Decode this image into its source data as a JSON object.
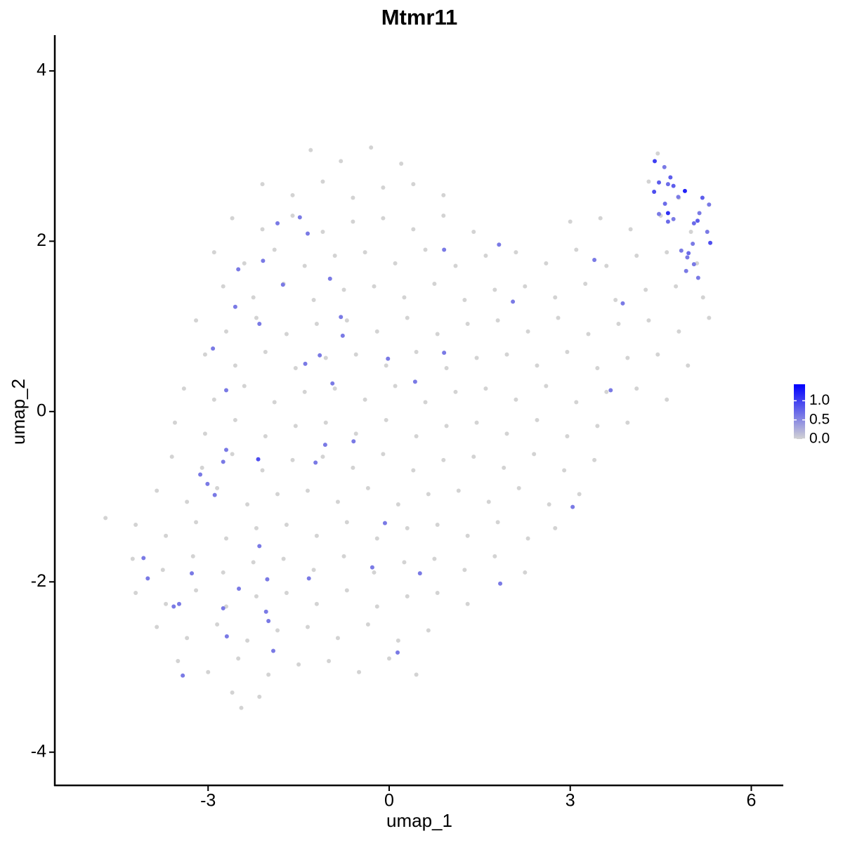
{
  "chart_data": {
    "type": "scatter",
    "title": "Mtmr11",
    "x_label": "umap_1",
    "y_label": "umap_2",
    "xlim": [
      -5.54,
      6.53
    ],
    "ylim": [
      -4.39,
      4.42
    ],
    "xticks": [
      -3,
      0,
      3,
      6
    ],
    "yticks": [
      -4,
      -2,
      0,
      2,
      4
    ],
    "grid": false,
    "color_scale": [
      "#d3d3d3",
      "#0000ff"
    ],
    "color_lim": [
      0,
      1.43
    ],
    "color_ticks": [
      {
        "value": 0,
        "label": "0.0"
      },
      {
        "value": 0.5,
        "label": "0.5"
      },
      {
        "value": 1,
        "label": "1.0"
      }
    ],
    "series": [
      {
        "color": "#d3d3d3",
        "x": [
          -1.3,
          -0.8,
          -0.3,
          0.2,
          4.45,
          -2.1,
          -1.6,
          -1.1,
          -0.6,
          -0.1,
          0.4,
          0.9,
          4.3,
          4.8,
          -2.6,
          -2.1,
          -1.6,
          -1.1,
          -0.6,
          -0.1,
          0.4,
          0.9,
          1.4,
          3.0,
          3.5,
          4.0,
          4.5,
          5.0,
          -2.9,
          -2.4,
          -1.9,
          -1.4,
          -0.9,
          -0.4,
          0.1,
          0.6,
          1.1,
          1.6,
          2.1,
          2.6,
          3.1,
          3.6,
          4.1,
          4.6,
          5.1,
          -2.75,
          -2.25,
          -1.75,
          -1.25,
          -0.75,
          -0.25,
          0.25,
          0.75,
          1.25,
          1.75,
          2.25,
          2.75,
          3.25,
          3.75,
          4.25,
          4.75,
          5.2,
          -3.2,
          -2.7,
          -2.2,
          -1.7,
          -1.2,
          -0.7,
          -0.2,
          0.3,
          0.8,
          1.3,
          1.8,
          2.3,
          2.8,
          3.3,
          3.8,
          4.3,
          4.8,
          5.3,
          -3.05,
          -2.55,
          -2.05,
          -1.55,
          -1.05,
          -0.55,
          -0.05,
          0.45,
          0.95,
          1.45,
          1.95,
          2.45,
          2.95,
          3.45,
          3.95,
          4.45,
          4.95,
          -3.4,
          -2.9,
          -2.4,
          -1.9,
          -1.4,
          -0.9,
          -0.4,
          0.1,
          0.6,
          1.1,
          1.6,
          2.1,
          2.6,
          3.1,
          3.6,
          4.1,
          4.6,
          -3.55,
          -3.05,
          -2.55,
          -2.05,
          -1.55,
          -1.05,
          -0.55,
          -0.05,
          0.45,
          0.95,
          1.45,
          1.95,
          2.45,
          2.95,
          3.45,
          3.95,
          -3.6,
          -3.1,
          -2.6,
          -2.1,
          -1.6,
          -1.1,
          -0.6,
          -0.1,
          0.4,
          0.9,
          1.4,
          1.9,
          2.4,
          2.9,
          3.4,
          -3.85,
          -3.35,
          -2.85,
          -2.35,
          -1.85,
          -1.35,
          -0.85,
          -0.35,
          0.15,
          0.65,
          1.15,
          1.65,
          2.15,
          2.65,
          3.15,
          -4.7,
          -4.2,
          -3.7,
          -3.2,
          -2.7,
          -2.2,
          -1.7,
          -1.2,
          -0.7,
          -0.2,
          0.3,
          0.8,
          1.3,
          1.8,
          2.3,
          2.75,
          -4.25,
          -3.75,
          -3.25,
          -2.75,
          -2.25,
          -1.75,
          -1.25,
          -0.75,
          -0.25,
          0.25,
          0.75,
          1.25,
          1.75,
          2.25,
          -4.2,
          -3.7,
          -3.2,
          -2.7,
          -2.2,
          -1.7,
          -1.2,
          -0.7,
          -0.2,
          0.3,
          0.8,
          1.3,
          -3.85,
          -3.35,
          -2.85,
          -2.35,
          -1.85,
          -1.35,
          -0.85,
          -0.35,
          0.15,
          0.65,
          -3.5,
          -3.0,
          -2.5,
          -2.0,
          -1.5,
          -1.0,
          -0.5,
          0.0,
          0.45,
          -2.6,
          -2.15,
          -2.45
        ],
        "values": [
          3.07,
          2.94,
          3.1,
          2.91,
          3.03,
          2.67,
          2.54,
          2.7,
          2.51,
          2.63,
          2.67,
          2.54,
          2.7,
          2.51,
          2.27,
          2.14,
          2.3,
          2.11,
          2.23,
          2.27,
          2.14,
          2.3,
          2.11,
          2.23,
          2.27,
          2.14,
          2.3,
          2.11,
          1.87,
          1.74,
          1.9,
          1.71,
          1.83,
          1.87,
          1.74,
          1.9,
          1.71,
          1.83,
          1.87,
          1.74,
          1.9,
          1.71,
          1.83,
          1.87,
          1.74,
          1.47,
          1.34,
          1.5,
          1.31,
          1.43,
          1.47,
          1.34,
          1.5,
          1.31,
          1.43,
          1.47,
          1.34,
          1.5,
          1.31,
          1.43,
          1.47,
          1.34,
          1.07,
          0.94,
          1.1,
          0.91,
          1.03,
          1.07,
          0.94,
          1.1,
          0.91,
          1.03,
          1.07,
          0.94,
          1.1,
          0.91,
          1.03,
          1.07,
          0.94,
          1.1,
          0.67,
          0.54,
          0.7,
          0.51,
          0.63,
          0.67,
          0.54,
          0.7,
          0.51,
          0.63,
          0.67,
          0.54,
          0.7,
          0.51,
          0.63,
          0.67,
          0.54,
          0.27,
          0.14,
          0.3,
          0.11,
          0.23,
          0.27,
          0.14,
          0.3,
          0.11,
          0.23,
          0.27,
          0.14,
          0.3,
          0.11,
          0.23,
          0.27,
          0.14,
          -0.13,
          -0.26,
          -0.1,
          -0.29,
          -0.17,
          -0.13,
          -0.26,
          -0.1,
          -0.29,
          -0.17,
          -0.13,
          -0.26,
          -0.1,
          -0.29,
          -0.17,
          -0.13,
          -0.53,
          -0.66,
          -0.5,
          -0.69,
          -0.57,
          -0.53,
          -0.66,
          -0.5,
          -0.69,
          -0.57,
          -0.53,
          -0.66,
          -0.5,
          -0.69,
          -0.57,
          -0.93,
          -1.06,
          -0.9,
          -1.09,
          -0.97,
          -0.93,
          -1.06,
          -0.9,
          -1.09,
          -0.97,
          -0.93,
          -1.06,
          -0.9,
          -1.09,
          -0.97,
          -1.25,
          -1.33,
          -1.46,
          -1.3,
          -1.49,
          -1.37,
          -1.33,
          -1.46,
          -1.3,
          -1.49,
          -1.37,
          -1.33,
          -1.46,
          -1.3,
          -1.49,
          -1.37,
          -1.73,
          -1.86,
          -1.7,
          -1.89,
          -1.77,
          -1.73,
          -1.86,
          -1.7,
          -1.89,
          -1.77,
          -1.73,
          -1.86,
          -1.7,
          -1.89,
          -2.13,
          -2.26,
          -2.1,
          -2.29,
          -2.17,
          -2.13,
          -2.26,
          -2.1,
          -2.29,
          -2.17,
          -2.13,
          -2.26,
          -2.53,
          -2.66,
          -2.5,
          -2.69,
          -2.57,
          -2.53,
          -2.66,
          -2.5,
          -2.69,
          -2.57,
          -2.93,
          -3.06,
          -2.9,
          -3.09,
          -2.97,
          -2.93,
          -3.06,
          -2.9,
          -3.09,
          -3.3,
          -3.35,
          -3.48
        ]
      },
      {
        "x": [
          4.4,
          4.39,
          4.47,
          4.56,
          4.66,
          4.71,
          4.62,
          4.9,
          4.79,
          4.57,
          4.62,
          4.47,
          4.62,
          4.71,
          5.19,
          5.14,
          5.3,
          5.05,
          5.11,
          5.27,
          5.32,
          5.03,
          4.84,
          4.96,
          5.05,
          4.92,
          5.12,
          4.94,
          -1.48,
          -1.85,
          -1.35,
          0.91,
          1.82,
          -2.5,
          -2.09,
          -1.76,
          -0.98,
          -2.55,
          2.05,
          3.4,
          3.87,
          -2.15,
          -0.8,
          -0.77,
          -2.92,
          -1.15,
          -1.39,
          0.91,
          -0.02,
          -0.94,
          0.43,
          -2.7,
          3.67,
          -1.06,
          -0.59,
          -2.7,
          -2.75,
          -2.17,
          -1.22,
          -3.13,
          -3.01,
          -2.89,
          3.04,
          -0.07,
          -4.07,
          -2.15,
          -0.28,
          -3.27,
          -4.0,
          -1.33,
          0.51,
          1.84,
          -2.02,
          -2.49,
          -2.75,
          -3.48,
          -3.57,
          -2.04,
          -2.0,
          -2.69,
          -1.92,
          0.14,
          -3.42
        ],
        "values": [
          2.94,
          2.58,
          2.69,
          2.87,
          2.75,
          2.65,
          2.67,
          2.59,
          2.52,
          2.44,
          2.33,
          2.32,
          2.23,
          2.26,
          2.51,
          2.33,
          2.43,
          2.21,
          2.24,
          2.11,
          1.98,
          1.97,
          1.89,
          1.86,
          1.73,
          1.65,
          1.57,
          1.81,
          2.28,
          2.21,
          2.09,
          1.9,
          1.96,
          1.67,
          1.77,
          1.49,
          1.56,
          1.23,
          1.29,
          1.78,
          1.27,
          1.03,
          1.11,
          0.89,
          0.74,
          0.66,
          0.56,
          0.69,
          0.62,
          0.33,
          0.35,
          0.25,
          0.25,
          -0.39,
          -0.35,
          -0.45,
          -0.59,
          -0.56,
          -0.6,
          -0.74,
          -0.85,
          -0.98,
          -1.12,
          -1.31,
          -1.72,
          -1.58,
          -1.83,
          -1.9,
          -1.96,
          -1.96,
          -1.9,
          -2.02,
          -1.97,
          -2.08,
          -2.31,
          -2.26,
          -2.29,
          -2.35,
          -2.46,
          -2.64,
          -2.81,
          -2.83,
          -3.1
        ],
        "expression": [
          1.0,
          0.9,
          0.8,
          0.6,
          0.8,
          0.8,
          0.7,
          1.2,
          0.6,
          0.7,
          1.1,
          0.6,
          0.7,
          0.6,
          0.8,
          0.6,
          0.6,
          0.7,
          0.8,
          0.6,
          0.9,
          0.6,
          0.6,
          0.7,
          0.6,
          0.6,
          0.6,
          0.6,
          0.6,
          0.6,
          0.6,
          0.6,
          0.6,
          0.6,
          0.6,
          0.6,
          0.6,
          0.6,
          0.6,
          0.6,
          0.6,
          0.6,
          0.6,
          0.6,
          0.6,
          0.6,
          0.6,
          0.6,
          0.6,
          0.6,
          0.6,
          0.6,
          0.6,
          0.6,
          0.6,
          0.6,
          0.6,
          0.9,
          0.6,
          0.6,
          0.6,
          0.6,
          0.6,
          0.6,
          0.6,
          0.6,
          0.6,
          0.6,
          0.6,
          0.6,
          0.6,
          0.6,
          0.6,
          0.6,
          0.6,
          0.6,
          0.6,
          0.6,
          0.6,
          0.6,
          0.6,
          0.6,
          0.6
        ]
      }
    ]
  }
}
